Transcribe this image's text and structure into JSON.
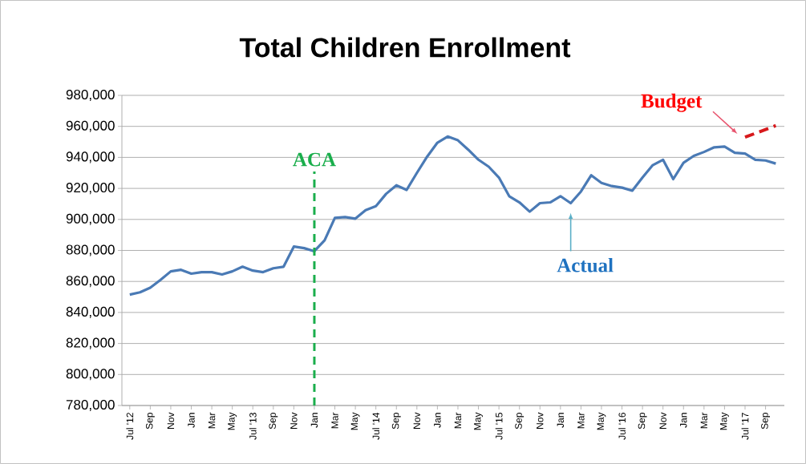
{
  "chart_data": {
    "type": "line",
    "title": "Total Children Enrollment",
    "xlim": [
      "2012-06-08",
      "2017-10-26"
    ],
    "xticks": [
      {
        "value": "2012-07",
        "label": "Jul '12"
      },
      {
        "value": "2012-09",
        "label": "Sep"
      },
      {
        "value": "2012-11",
        "label": "Nov"
      },
      {
        "value": "2013-01",
        "label": "Jan"
      },
      {
        "value": "2013-03",
        "label": "Mar"
      },
      {
        "value": "2013-05",
        "label": "May"
      },
      {
        "value": "2013-07",
        "label": "Jul '13"
      },
      {
        "value": "2013-09",
        "label": "Sep"
      },
      {
        "value": "2013-11",
        "label": "Nov"
      },
      {
        "value": "2014-01",
        "label": "Jan"
      },
      {
        "value": "2014-03",
        "label": "Mar"
      },
      {
        "value": "2014-05",
        "label": "May"
      },
      {
        "value": "2014-07",
        "label": "Jul '14"
      },
      {
        "value": "2014-09",
        "label": "Sep"
      },
      {
        "value": "2014-11",
        "label": "Nov"
      },
      {
        "value": "2015-01",
        "label": "Jan"
      },
      {
        "value": "2015-03",
        "label": "Mar"
      },
      {
        "value": "2015-05",
        "label": "May"
      },
      {
        "value": "2015-07",
        "label": "Jul '15"
      },
      {
        "value": "2015-09",
        "label": "Sep"
      },
      {
        "value": "2015-11",
        "label": "Nov"
      },
      {
        "value": "2016-01",
        "label": "Jan"
      },
      {
        "value": "2016-03",
        "label": "Mar"
      },
      {
        "value": "2016-05",
        "label": "May"
      },
      {
        "value": "2016-07",
        "label": "Jul '16"
      },
      {
        "value": "2016-09",
        "label": "Sep"
      },
      {
        "value": "2016-11",
        "label": "Nov"
      },
      {
        "value": "2017-01",
        "label": "Jan"
      },
      {
        "value": "2017-03",
        "label": "Mar"
      },
      {
        "value": "2017-05",
        "label": "May"
      },
      {
        "value": "2017-07",
        "label": "Jul '17"
      },
      {
        "value": "2017-09",
        "label": "Sep"
      }
    ],
    "ylim": [
      780000,
      980000
    ],
    "yticks": [
      {
        "value": 780000,
        "label": "780,000"
      },
      {
        "value": 800000,
        "label": "800,000"
      },
      {
        "value": 820000,
        "label": "820,000"
      },
      {
        "value": 840000,
        "label": "840,000"
      },
      {
        "value": 860000,
        "label": "860,000"
      },
      {
        "value": 880000,
        "label": "880,000"
      },
      {
        "value": 900000,
        "label": "900,000"
      },
      {
        "value": 920000,
        "label": "920,000"
      },
      {
        "value": 940000,
        "label": "940,000"
      },
      {
        "value": 960000,
        "label": "960,000"
      },
      {
        "value": 980000,
        "label": "980,000"
      }
    ],
    "grid": "y",
    "x": [
      "2012-07",
      "2012-08",
      "2012-09",
      "2012-10",
      "2012-11",
      "2012-12",
      "2013-01",
      "2013-02",
      "2013-03",
      "2013-04",
      "2013-05",
      "2013-06",
      "2013-07",
      "2013-08",
      "2013-09",
      "2013-10",
      "2013-11",
      "2013-12",
      "2014-01",
      "2014-02",
      "2014-03",
      "2014-04",
      "2014-05",
      "2014-06",
      "2014-07",
      "2014-08",
      "2014-09",
      "2014-10",
      "2014-11",
      "2014-12",
      "2015-01",
      "2015-02",
      "2015-03",
      "2015-04",
      "2015-05",
      "2015-06",
      "2015-07",
      "2015-08",
      "2015-09",
      "2015-10",
      "2015-11",
      "2015-12",
      "2016-01",
      "2016-02",
      "2016-03",
      "2016-04",
      "2016-05",
      "2016-06",
      "2016-07",
      "2016-08",
      "2016-09",
      "2016-10",
      "2016-11",
      "2016-12",
      "2017-01",
      "2017-02",
      "2017-03",
      "2017-04",
      "2017-05",
      "2017-06",
      "2017-07",
      "2017-08",
      "2017-09",
      "2017-10"
    ],
    "series": [
      {
        "color": "#4a7ab5",
        "line_style": "solid",
        "values": [
          851500,
          853000,
          856000,
          861000,
          866500,
          867500,
          865000,
          866000,
          866000,
          864500,
          866500,
          869500,
          867000,
          866000,
          868500,
          869500,
          882500,
          881500,
          879500,
          886500,
          901000,
          901500,
          900500,
          906000,
          908500,
          916500,
          922000,
          919000,
          930000,
          940500,
          949500,
          953500,
          951000,
          945000,
          938500,
          934000,
          927000,
          915000,
          911000,
          905000,
          910500,
          911000,
          915000,
          910500,
          918000,
          928500,
          923500,
          921500,
          920500,
          918500,
          927000,
          935000,
          938500,
          926000,
          936500,
          941000,
          943500,
          946500,
          947000,
          943000,
          942500,
          938500,
          938000,
          936000
        ]
      },
      {
        "color": "#d7191c",
        "line_style": "dashed",
        "x": [
          "2017-07",
          "2017-08",
          "2017-09",
          "2017-10"
        ],
        "values": [
          953000,
          955500,
          958000,
          960500
        ]
      }
    ],
    "ref_lines": [
      {
        "axis": "x",
        "value": "2014-01",
        "label": "ACA",
        "color": "#1aae4c",
        "line_style": "dashed"
      }
    ],
    "annotations": [
      {
        "text": "Budget",
        "x": "2017-07",
        "y": 953000
      },
      {
        "text": "Actual",
        "x": "2016-02",
        "y": 910500
      }
    ]
  }
}
